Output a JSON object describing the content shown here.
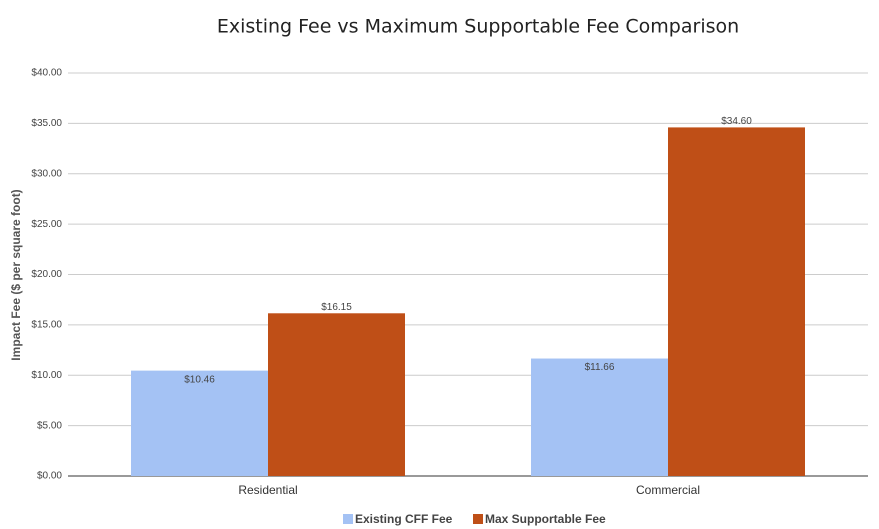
{
  "chart_data": {
    "type": "bar",
    "title": "Existing Fee vs Maximum Supportable Fee Comparison",
    "y_label": "Impact Fee ($ per square foot)",
    "categories": [
      "Residential",
      "Commercial"
    ],
    "series": [
      {
        "name": "Existing CFF Fee",
        "color": "#a4c2f4",
        "values": [
          10.46,
          11.66
        ],
        "value_labels": [
          "$10.46",
          "$11.66"
        ]
      },
      {
        "name": "Max Supportable Fee",
        "color": "#bf4f17",
        "values": [
          16.15,
          34.6
        ],
        "value_labels": [
          "$16.15",
          "$34.60"
        ]
      }
    ],
    "ylim": [
      0,
      40
    ],
    "yticks": [
      {
        "value": 0,
        "label": "$0.00"
      },
      {
        "value": 5,
        "label": "$5.00"
      },
      {
        "value": 10,
        "label": "$10.00"
      },
      {
        "value": 15,
        "label": "$15.00"
      },
      {
        "value": 20,
        "label": "$20.00"
      },
      {
        "value": 25,
        "label": "$25.00"
      },
      {
        "value": 30,
        "label": "$30.00"
      },
      {
        "value": 35,
        "label": "$35.00"
      },
      {
        "value": 40,
        "label": "$40.00"
      }
    ],
    "grid": true,
    "legend": "bottom"
  }
}
